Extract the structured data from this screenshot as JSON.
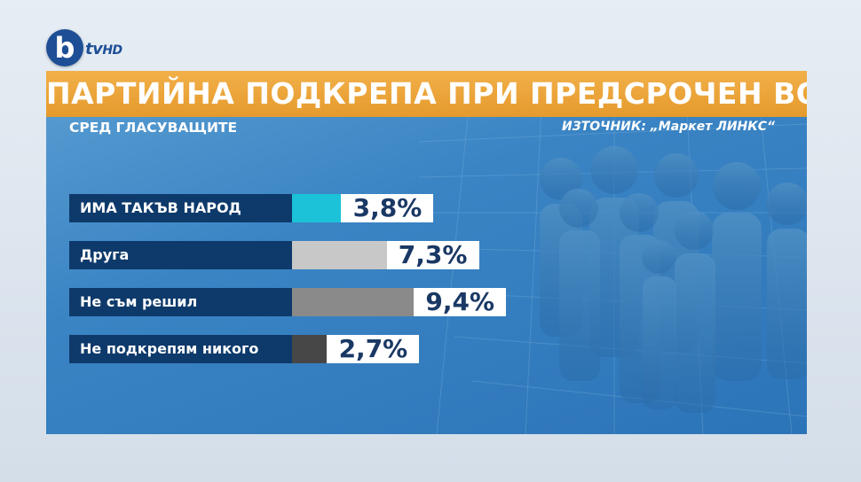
{
  "logo": {
    "letter": "b",
    "text": "tv",
    "hd": "HD"
  },
  "header": {
    "title": "ПАРТИЙНА ПОДКРЕПА ПРИ ПРЕДСРОЧЕН ВОТ",
    "subtitle": "СРЕД ГЛАСУВАЩИТЕ",
    "source": "ИЗТОЧНИК: „Маркет ЛИНКС“"
  },
  "colors": {
    "title_bar": "#e8a030",
    "label_bg": "#0e3a6b",
    "value_text": "#1a3864"
  },
  "chart_data": {
    "type": "bar",
    "orientation": "horizontal",
    "categories": [
      "ИМА ТАКЪВ НАРОД",
      "Друга",
      "Не съм решил",
      "Не подкрепям никого"
    ],
    "values": [
      3.8,
      7.3,
      9.4,
      2.7
    ],
    "value_labels": [
      "3,8%",
      "7,3%",
      "9,4%",
      "2,7%"
    ],
    "bar_colors": [
      "#1cc3d8",
      "#c8c8c8",
      "#8a8a8a",
      "#474747"
    ],
    "unit": "%"
  }
}
